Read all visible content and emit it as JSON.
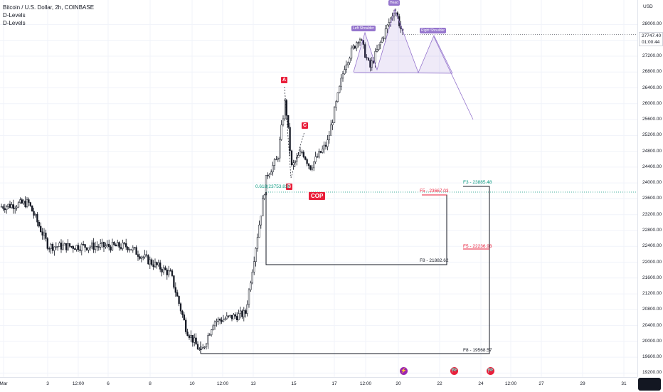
{
  "legend": {
    "symbol": "Bitcoin / U.S. Dollar, 2h, COINBASE",
    "indicator1": "D-Levels",
    "indicator2": "D-Levels"
  },
  "price_axis": {
    "currency": "USD",
    "labels": [
      "28000.00",
      "27600.00",
      "27200.00",
      "26800.00",
      "26400.00",
      "26000.00",
      "25600.00",
      "25200.00",
      "24800.00",
      "24400.00",
      "24000.00",
      "23600.00",
      "23200.00",
      "22800.00",
      "22400.00",
      "22000.00",
      "21600.00",
      "21200.00",
      "20800.00",
      "20400.00",
      "20000.00",
      "19600.00",
      "19200.00"
    ],
    "current_price": "27747.40",
    "countdown": "01:00:44"
  },
  "time_axis": {
    "labels": [
      "Mar",
      "3",
      "12:00",
      "6",
      "8",
      "10",
      "12:00",
      "13",
      "15",
      "17",
      "12:00",
      "20",
      "22",
      "24",
      "12:00",
      "27",
      "29",
      "31"
    ]
  },
  "annotations": {
    "A": "A",
    "B": "B",
    "C": "C",
    "cop": "COP",
    "fib_ratio": "0.618(23753.83)",
    "head": "Head",
    "left_shoulder": "Left Shoulder",
    "right_shoulder": "Right Shoulder"
  },
  "fib_levels": {
    "f3_upper": "F3 - 23885.48",
    "f5_upper": "F5 - 23667.03",
    "f8_upper": "F8 - 21882.62",
    "f5_lower": "F5 - 22236.93",
    "f8_lower": "F8 - 19568.57"
  },
  "chart_data": {
    "type": "candlestick",
    "symbol": "BTCUSD",
    "interval": "2h",
    "y_range": [
      19100,
      28600
    ],
    "colors": {
      "up": "#131722",
      "down": "#131722",
      "pattern": "#9575cd",
      "marker": "#e91e3a",
      "fib_green": "#089981",
      "fib_red": "#e91e3a"
    },
    "close_path": [
      {
        "x": "Mar 1",
        "y": 23400
      },
      {
        "x": "Mar 2",
        "y": 23500
      },
      {
        "x": "Mar 3",
        "y": 22400
      },
      {
        "x": "Mar 5",
        "y": 22400
      },
      {
        "x": "Mar 7",
        "y": 22400
      },
      {
        "x": "Mar 8",
        "y": 22000
      },
      {
        "x": "Mar 9",
        "y": 21700
      },
      {
        "x": "Mar 10",
        "y": 20300
      },
      {
        "x": "Mar 10 12:00",
        "y": 19700
      },
      {
        "x": "Mar 11",
        "y": 20500
      },
      {
        "x": "Mar 12 12:00",
        "y": 20700
      },
      {
        "x": "Mar 13",
        "y": 22100
      },
      {
        "x": "Mar 13 12:00",
        "y": 24200
      },
      {
        "x": "Mar 14",
        "y": 24600
      },
      {
        "x": "Mar 14 12:00",
        "y": 26100
      },
      {
        "x": "Mar 15",
        "y": 24400
      },
      {
        "x": "Mar 15 12:00",
        "y": 24800
      },
      {
        "x": "Mar 16",
        "y": 24400
      },
      {
        "x": "Mar 17",
        "y": 25000
      },
      {
        "x": "Mar 17 12:00",
        "y": 27000
      },
      {
        "x": "Mar 18",
        "y": 27700
      },
      {
        "x": "Mar 19",
        "y": 26900
      },
      {
        "x": "Mar 20",
        "y": 28400
      },
      {
        "x": "Mar 20 12:00",
        "y": 27750
      }
    ],
    "pattern": "head-and-shoulders",
    "current_price": 27747.4
  },
  "events": {
    "lightning": "⚡",
    "flag1": "🏁",
    "flag2": "🏁"
  }
}
